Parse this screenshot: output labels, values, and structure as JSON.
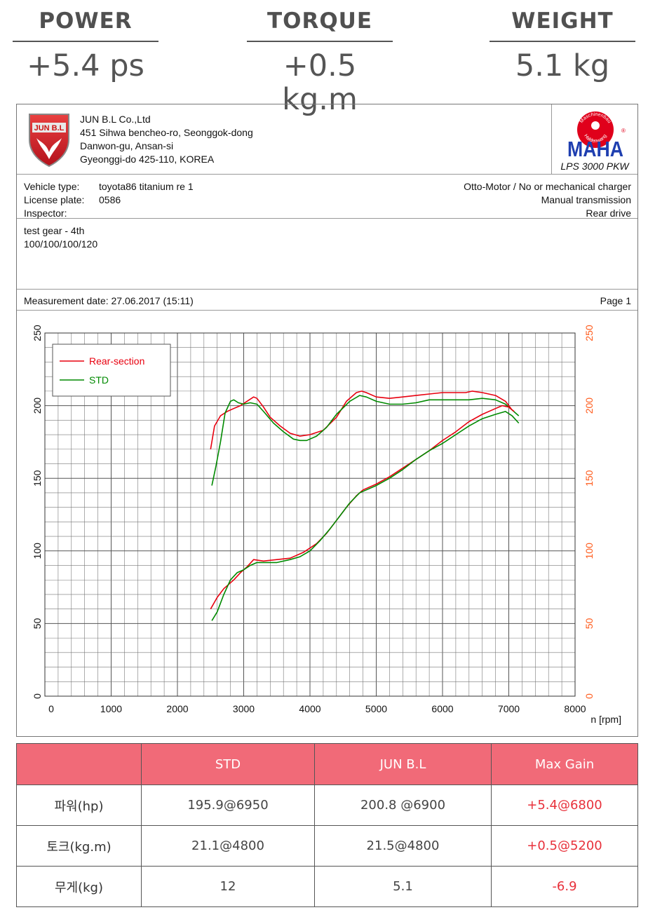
{
  "header_stats": [
    {
      "label": "POWER",
      "value": "+5.4 ps"
    },
    {
      "label": "TORQUE",
      "value": "+0.5 kg.m"
    },
    {
      "label": "WEIGHT",
      "value": "5.1 kg"
    }
  ],
  "company": {
    "logo_text": "JUN B.L",
    "address_lines": [
      "JUN B.L Co.,Ltd",
      "451 Sihwa bencheo-ro, Seonggok-dong",
      "Danwon-gu, Ansan-si",
      "Gyeonggi-do 425-110, KOREA"
    ]
  },
  "maha": {
    "brand": "MAHA",
    "ring_top": "Maschinenbau",
    "ring_bottom": "Haldenwang",
    "reg": "®",
    "model": "LPS 3000 PKW"
  },
  "vehicle": {
    "type_label": "Vehicle type:",
    "type_value": "toyota86 titanium re 1",
    "plate_label": "License plate:",
    "plate_value": "0586",
    "inspector_label": "Inspector:",
    "inspector_value": "",
    "engine": "Otto-Motor / No or mechanical charger",
    "transmission": "Manual transmission",
    "drive": "Rear drive"
  },
  "notes": [
    "test gear - 4th",
    "100/100/100/120"
  ],
  "measurement": {
    "date": "Measurement date: 27.06.2017 (15:11)",
    "page": "Page 1"
  },
  "colors": {
    "red": "#e8000f",
    "green": "#008a00",
    "axis_right": "#ff5a1a",
    "header_bg": "#f16a78",
    "gain": "#e8313b"
  },
  "chart_data": {
    "type": "line",
    "xlabel": "n [rpm]",
    "xlim": [
      0,
      8000
    ],
    "ylim": [
      0,
      250
    ],
    "x_ticks": [
      0,
      1000,
      2000,
      3000,
      4000,
      5000,
      6000,
      7000,
      8000
    ],
    "y_ticks": [
      0,
      50,
      100,
      150,
      200,
      250
    ],
    "grid": true,
    "legend_position": "top-left",
    "series": [
      {
        "name": "Rear-section",
        "color": "#e8000f",
        "curve": "torque",
        "x": [
          2500,
          2560,
          2650,
          2750,
          2850,
          2950,
          3050,
          3150,
          3200,
          3300,
          3400,
          3550,
          3700,
          3850,
          4000,
          4200,
          4400,
          4550,
          4700,
          4780,
          4850,
          5000,
          5200,
          5400,
          5600,
          5800,
          6000,
          6200,
          6350,
          6450,
          6600,
          6800,
          6950,
          7050
        ],
        "y": [
          170,
          186,
          193,
          196,
          198,
          200,
          203,
          206,
          205,
          199,
          192,
          186,
          181,
          179,
          180,
          183,
          192,
          203,
          209,
          210,
          209,
          206,
          205,
          206,
          207,
          208,
          209,
          209,
          209,
          210,
          209,
          207,
          203,
          197
        ]
      },
      {
        "name": "STD",
        "color": "#008a00",
        "curve": "torque",
        "x": [
          2520,
          2580,
          2650,
          2720,
          2800,
          2850,
          2920,
          3000,
          3100,
          3200,
          3300,
          3450,
          3600,
          3750,
          3850,
          3950,
          4100,
          4250,
          4400,
          4600,
          4750,
          4850,
          5000,
          5200,
          5400,
          5600,
          5800,
          6000,
          6200,
          6400,
          6600,
          6800,
          6950,
          7050,
          7150
        ],
        "y": [
          145,
          158,
          175,
          195,
          203,
          204,
          202,
          201,
          202,
          201,
          196,
          188,
          182,
          177,
          176,
          176,
          179,
          185,
          194,
          203,
          207,
          206,
          203,
          201,
          201,
          202,
          204,
          204,
          204,
          204,
          205,
          204,
          201,
          197,
          193
        ]
      },
      {
        "name": "Rear-section",
        "color": "#e8000f",
        "curve": "power",
        "x": [
          2500,
          2600,
          2700,
          2850,
          2950,
          3050,
          3150,
          3300,
          3500,
          3700,
          3900,
          4100,
          4250,
          4400,
          4550,
          4700,
          4800,
          5000,
          5200,
          5400,
          5600,
          5800,
          6000,
          6200,
          6400,
          6600,
          6800,
          6900,
          7000,
          7080
        ],
        "y": [
          60,
          68,
          74,
          80,
          85,
          89,
          94,
          93,
          94,
          95,
          99,
          105,
          112,
          121,
          130,
          138,
          142,
          146,
          151,
          157,
          163,
          169,
          176,
          182,
          189,
          194,
          198,
          200,
          199,
          196
        ]
      },
      {
        "name": "STD",
        "color": "#008a00",
        "curve": "power",
        "x": [
          2520,
          2600,
          2700,
          2800,
          2900,
          3000,
          3100,
          3200,
          3350,
          3500,
          3700,
          3850,
          4000,
          4150,
          4300,
          4450,
          4600,
          4750,
          4850,
          5000,
          5200,
          5400,
          5600,
          5800,
          6000,
          6200,
          6400,
          6600,
          6800,
          6950,
          7050,
          7150
        ],
        "y": [
          52,
          58,
          70,
          80,
          85,
          87,
          90,
          92,
          92,
          92,
          94,
          96,
          100,
          107,
          115,
          124,
          133,
          140,
          142,
          145,
          150,
          156,
          163,
          169,
          174,
          180,
          186,
          191,
          194,
          196,
          193,
          188
        ]
      }
    ],
    "legend": [
      {
        "name": "Rear-section",
        "color": "#e8000f"
      },
      {
        "name": "STD",
        "color": "#008a00"
      }
    ]
  },
  "results_table": {
    "headers": [
      "",
      "STD",
      "JUN B.L",
      "Max Gain"
    ],
    "rows": [
      {
        "label": "파워(hp)",
        "std": "195.9@6950",
        "jun": "200.8 @6900",
        "gain": "+5.4@6800"
      },
      {
        "label": "토크(kg.m)",
        "std": "21.1@4800",
        "jun": "21.5@4800",
        "gain": "+0.5@5200"
      },
      {
        "label": "무게(kg)",
        "std": "12",
        "jun": "5.1",
        "gain": "-6.9"
      }
    ]
  }
}
